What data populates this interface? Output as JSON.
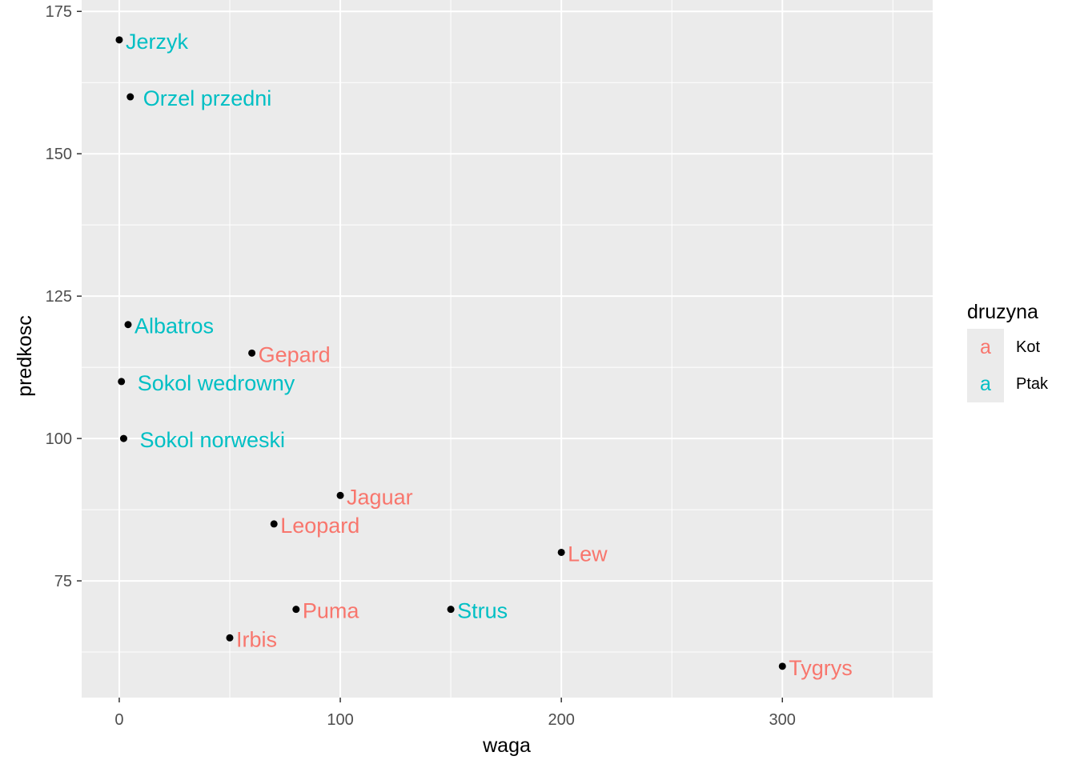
{
  "chart_data": {
    "type": "scatter",
    "title": "",
    "xlabel": "waga",
    "ylabel": "predkosc",
    "xlim": [
      -17,
      368
    ],
    "ylim": [
      54.5,
      177
    ],
    "x_ticks": [
      0,
      100,
      200,
      300
    ],
    "x_tick_labels": [
      "0",
      "100",
      "200",
      "300"
    ],
    "y_ticks": [
      75,
      100,
      125,
      150,
      175
    ],
    "y_tick_labels": [
      "75",
      "100",
      "125",
      "150",
      "175"
    ],
    "grid": true,
    "legend": {
      "title": "druzyna",
      "position": "right",
      "entries": [
        {
          "key_symbol": "a",
          "label": "Kot",
          "color": "#F8766D"
        },
        {
          "key_symbol": "a",
          "label": "Ptak",
          "color": "#00BFC4"
        }
      ]
    },
    "points": [
      {
        "name": "Jerzyk",
        "group": "Ptak",
        "x": 0,
        "y": 170
      },
      {
        "name": "Orzel przedni",
        "group": "Ptak",
        "x": 5,
        "y": 160
      },
      {
        "name": "Albatros",
        "group": "Ptak",
        "x": 4,
        "y": 120
      },
      {
        "name": "Gepard",
        "group": "Kot",
        "x": 60,
        "y": 115
      },
      {
        "name": "Sokol wedrowny",
        "group": "Ptak",
        "x": 1,
        "y": 110
      },
      {
        "name": "Sokol norweski",
        "group": "Ptak",
        "x": 2,
        "y": 100
      },
      {
        "name": "Jaguar",
        "group": "Kot",
        "x": 100,
        "y": 90
      },
      {
        "name": "Leopard",
        "group": "Kot",
        "x": 70,
        "y": 85
      },
      {
        "name": "Lew",
        "group": "Kot",
        "x": 200,
        "y": 80
      },
      {
        "name": "Puma",
        "group": "Kot",
        "x": 80,
        "y": 70
      },
      {
        "name": "Strus",
        "group": "Ptak",
        "x": 150,
        "y": 70
      },
      {
        "name": "Irbis",
        "group": "Kot",
        "x": 50,
        "y": 65
      },
      {
        "name": "Tygrys",
        "group": "Kot",
        "x": 300,
        "y": 60
      }
    ],
    "colors": {
      "Kot": "#F8766D",
      "Ptak": "#00BFC4",
      "panel_background": "#EBEBEB",
      "grid": "#FFFFFF",
      "point": "#000000"
    }
  }
}
